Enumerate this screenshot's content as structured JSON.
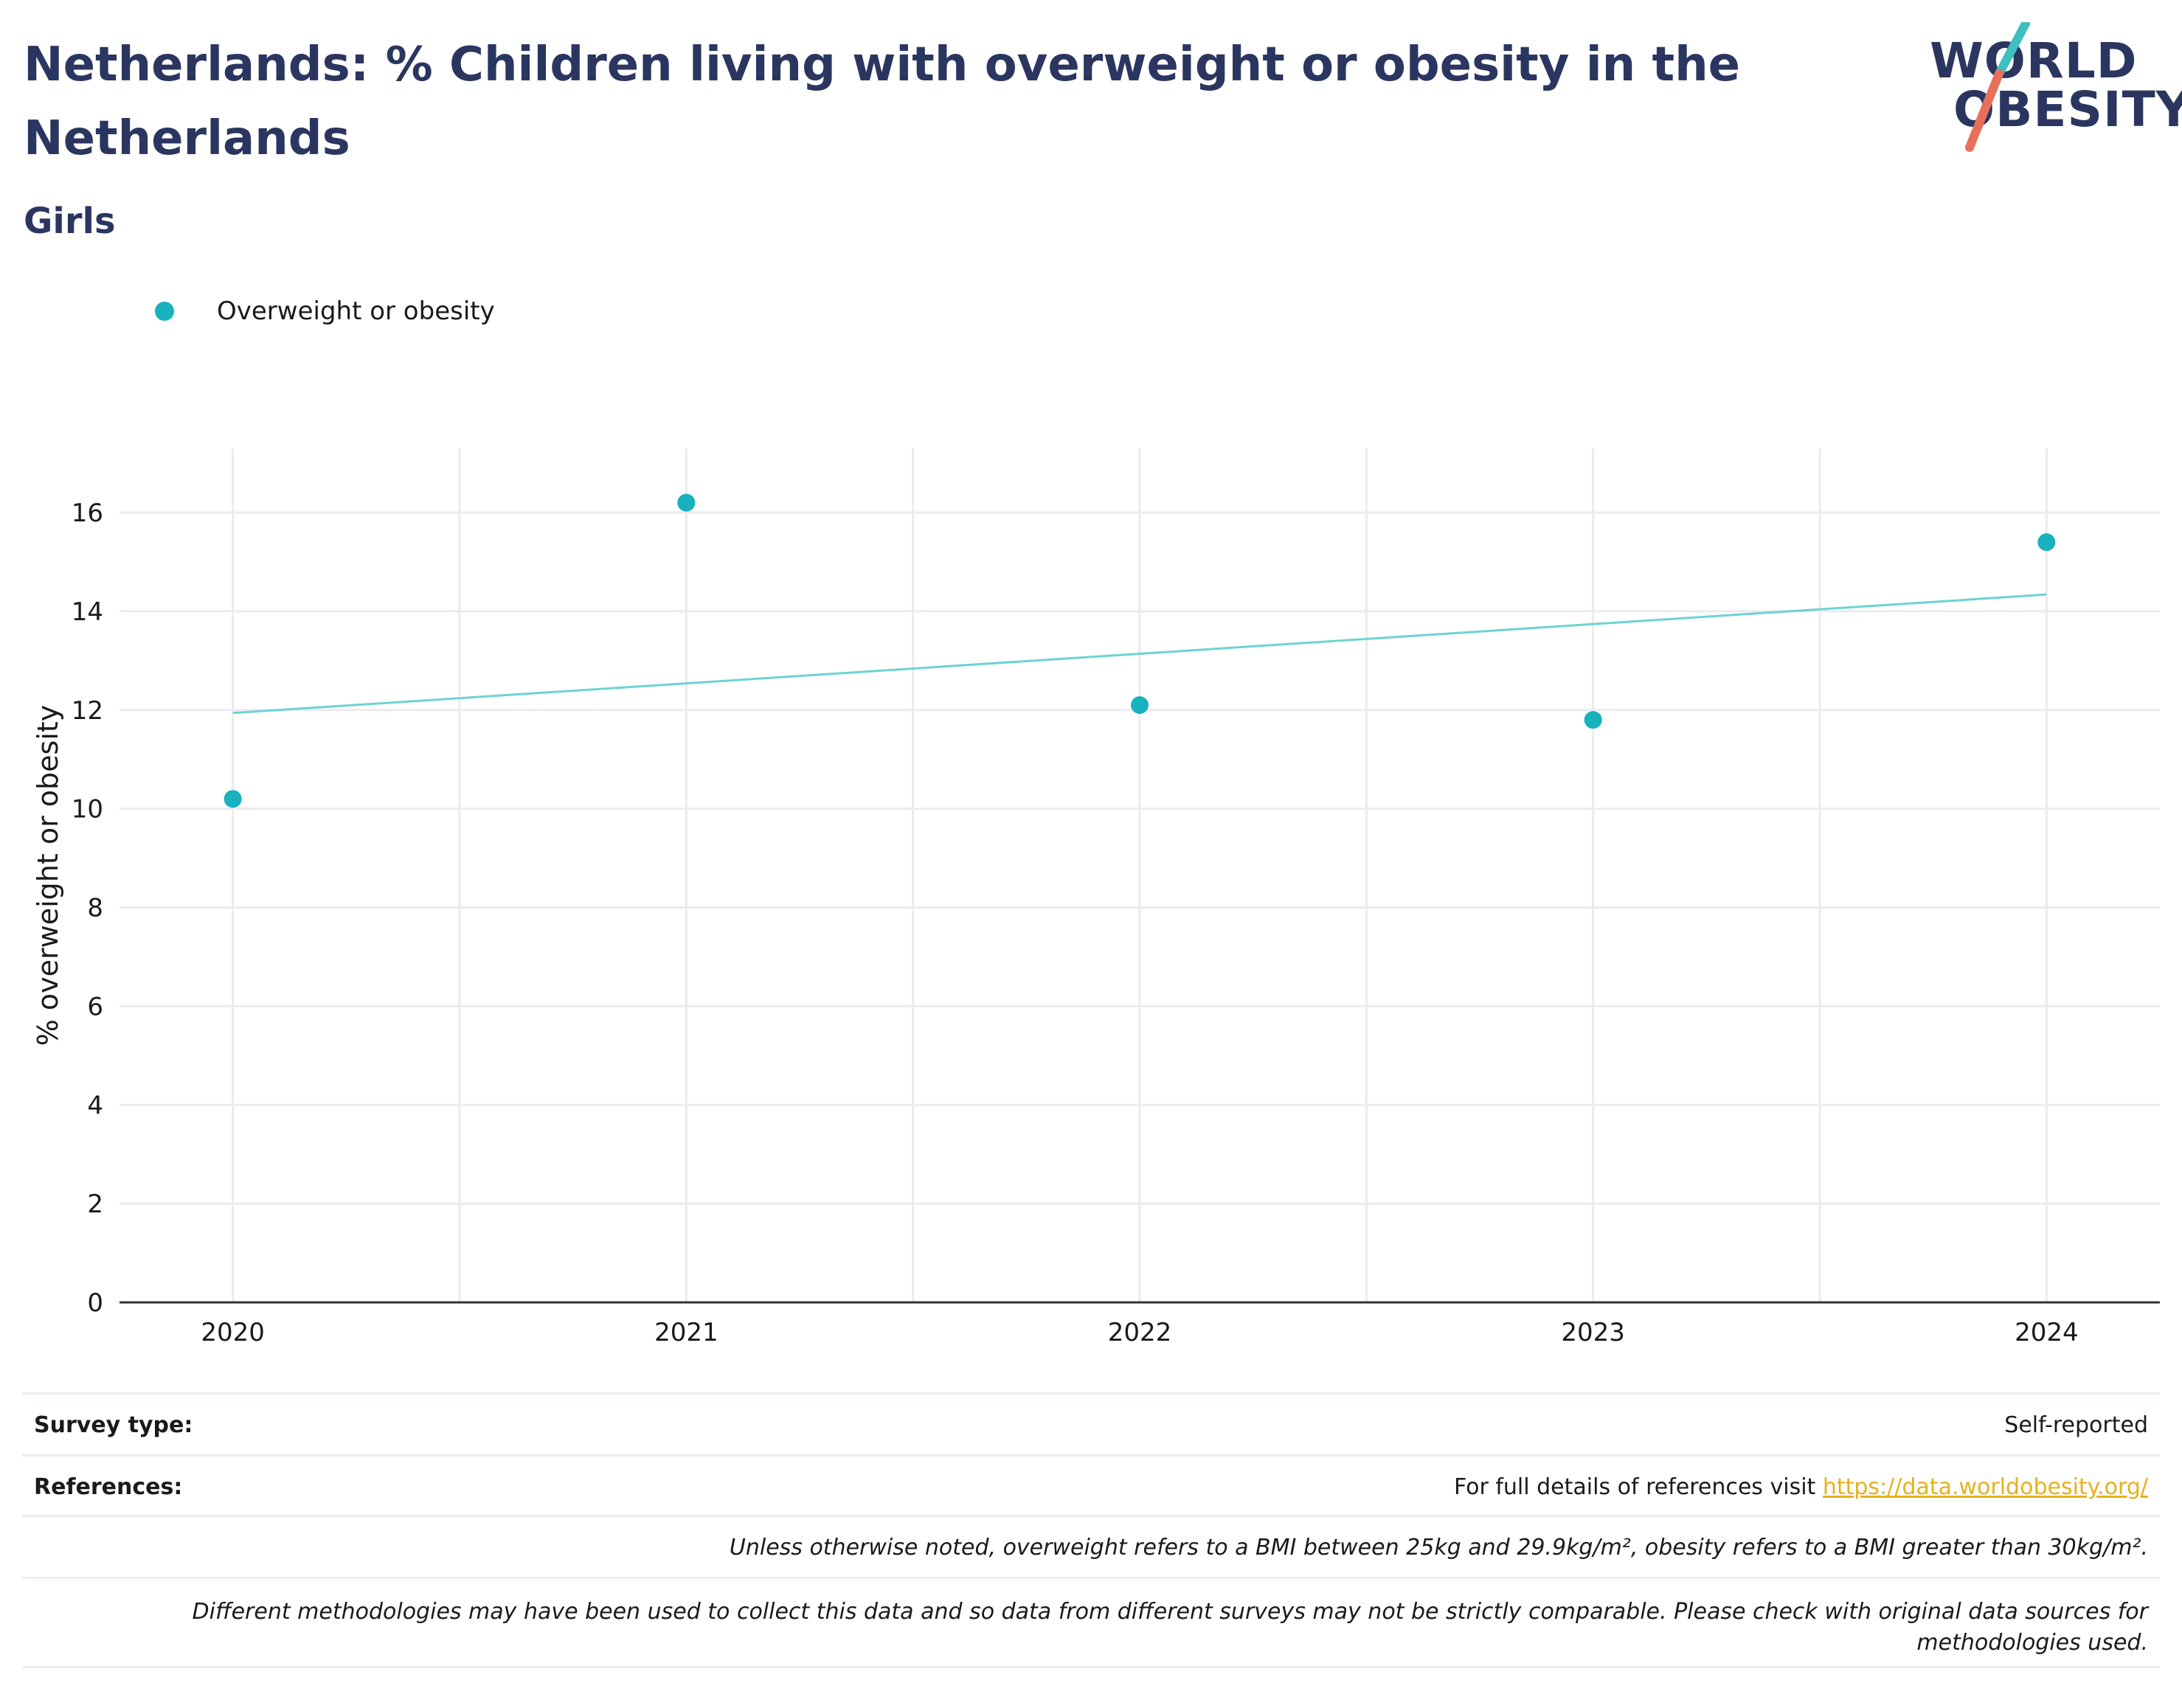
{
  "header": {
    "title": "Netherlands: % Children living with overweight or obesity in the Netherlands",
    "subtitle": "Girls"
  },
  "logo": {
    "line1": "WORLD",
    "line2": "OBESITY",
    "accent_colors": [
      "#3fbfbf",
      "#e8705a"
    ]
  },
  "legend": {
    "items": [
      {
        "label": "Overweight or obesity",
        "color": "#17b2be"
      }
    ]
  },
  "chart_data": {
    "type": "scatter",
    "title": "Netherlands: % Children living with overweight or obesity in the Netherlands",
    "subtitle": "Girls",
    "xlabel": "",
    "ylabel": "% overweight or obesity",
    "x": [
      2020,
      2021,
      2022,
      2023,
      2024
    ],
    "series": [
      {
        "name": "Overweight or obesity",
        "type": "scatter",
        "color": "#17b2be",
        "values": [
          10.2,
          16.2,
          12.1,
          11.8,
          15.4
        ]
      },
      {
        "type": "line",
        "color": "#6dd3d3",
        "values": [
          11.94,
          12.54,
          13.14,
          13.74,
          14.34
        ]
      }
    ],
    "xticks": [
      "2020",
      "2021",
      "2022",
      "2023",
      "2024"
    ],
    "yticks": [
      0,
      2,
      4,
      6,
      8,
      10,
      12,
      14,
      16
    ],
    "xlim": [
      2019.75,
      2024.25
    ],
    "ylim": [
      0,
      17.3
    ],
    "grid": true,
    "legend_position": "top-left"
  },
  "footer": {
    "survey_type_label": "Survey type:",
    "survey_type_value": "Self-reported",
    "references_label": "References:",
    "references_text": "For full details of references visit ",
    "references_link": "https://data.worldobesity.org/",
    "note1": "Unless otherwise noted, overweight refers to a BMI between 25kg and 29.9kg/m², obesity refers to a BMI greater than 30kg/m².",
    "note2_line1": "Different methodologies may have been used to collect this data and so data from different surveys may not be strictly comparable. Please check with original data sources for",
    "note2_line2": "methodologies used."
  }
}
